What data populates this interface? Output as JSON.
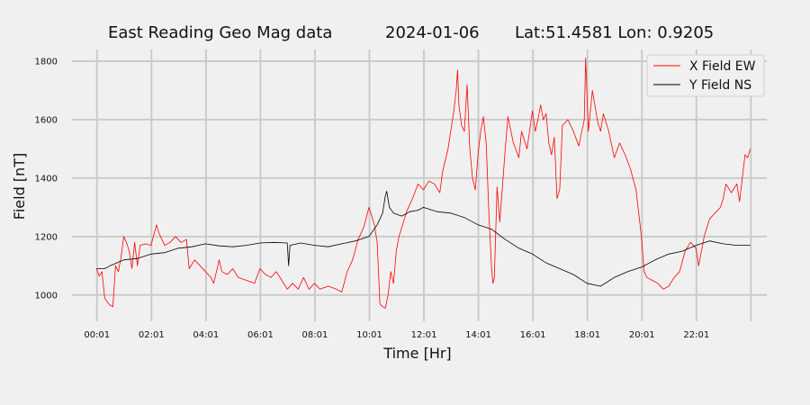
{
  "chart_data": {
    "type": "line",
    "title": {
      "station": "East Reading Geo Mag data",
      "date": "2024-01-06",
      "location": "Lat:51.4581  Lon: 0.9205"
    },
    "xlabel": "Time  [Hr]",
    "ylabel": "Field  [nT]",
    "x_unit": "hours since 00:00",
    "xlim": [
      -0.9,
      24.6
    ],
    "ylim": [
      910,
      1840
    ],
    "x_ticks": [
      {
        "x": 0.0167,
        "label": "00:01"
      },
      {
        "x": 2.0167,
        "label": "02:01"
      },
      {
        "x": 4.0167,
        "label": "04:01"
      },
      {
        "x": 6.0167,
        "label": "06:01"
      },
      {
        "x": 8.0167,
        "label": "08:01"
      },
      {
        "x": 10.0167,
        "label": "10:01"
      },
      {
        "x": 12.0167,
        "label": "12:01"
      },
      {
        "x": 14.0167,
        "label": "14:01"
      },
      {
        "x": 16.0167,
        "label": "16:01"
      },
      {
        "x": 18.0167,
        "label": "18:01"
      },
      {
        "x": 20.0167,
        "label": "20:01"
      },
      {
        "x": 22.0167,
        "label": "22:01"
      }
    ],
    "x_grid": [
      0.0167,
      2.0167,
      4.0167,
      6.0167,
      8.0167,
      10.0167,
      12.0167,
      14.0167,
      16.0167,
      18.0167,
      20.0167,
      22.0167,
      24.0167
    ],
    "y_ticks": [
      1000,
      1200,
      1400,
      1600,
      1800
    ],
    "grid": true,
    "legend": {
      "position": "top-right"
    },
    "series": [
      {
        "name": "X Field EW",
        "color": "#ff0000",
        "points": [
          [
            0.0,
            1090
          ],
          [
            0.1,
            1065
          ],
          [
            0.2,
            1080
          ],
          [
            0.3,
            990
          ],
          [
            0.4,
            975
          ],
          [
            0.5,
            965
          ],
          [
            0.6,
            960
          ],
          [
            0.7,
            1100
          ],
          [
            0.8,
            1080
          ],
          [
            0.9,
            1130
          ],
          [
            1.0,
            1200
          ],
          [
            1.1,
            1180
          ],
          [
            1.2,
            1150
          ],
          [
            1.3,
            1090
          ],
          [
            1.4,
            1180
          ],
          [
            1.5,
            1100
          ],
          [
            1.6,
            1170
          ],
          [
            1.8,
            1175
          ],
          [
            2.0,
            1170
          ],
          [
            2.2,
            1240
          ],
          [
            2.3,
            1210
          ],
          [
            2.5,
            1170
          ],
          [
            2.7,
            1180
          ],
          [
            2.9,
            1200
          ],
          [
            3.1,
            1180
          ],
          [
            3.3,
            1190
          ],
          [
            3.4,
            1090
          ],
          [
            3.6,
            1120
          ],
          [
            3.8,
            1100
          ],
          [
            4.0,
            1080
          ],
          [
            4.2,
            1060
          ],
          [
            4.3,
            1040
          ],
          [
            4.4,
            1080
          ],
          [
            4.5,
            1120
          ],
          [
            4.6,
            1080
          ],
          [
            4.8,
            1070
          ],
          [
            5.0,
            1090
          ],
          [
            5.2,
            1060
          ],
          [
            5.5,
            1050
          ],
          [
            5.8,
            1040
          ],
          [
            6.0,
            1090
          ],
          [
            6.2,
            1070
          ],
          [
            6.4,
            1060
          ],
          [
            6.6,
            1080
          ],
          [
            6.8,
            1050
          ],
          [
            7.0,
            1020
          ],
          [
            7.2,
            1040
          ],
          [
            7.4,
            1020
          ],
          [
            7.6,
            1060
          ],
          [
            7.8,
            1020
          ],
          [
            8.0,
            1040
          ],
          [
            8.2,
            1020
          ],
          [
            8.5,
            1030
          ],
          [
            8.8,
            1020
          ],
          [
            9.0,
            1010
          ],
          [
            9.2,
            1080
          ],
          [
            9.4,
            1120
          ],
          [
            9.6,
            1190
          ],
          [
            9.8,
            1230
          ],
          [
            10.0,
            1300
          ],
          [
            10.2,
            1240
          ],
          [
            10.3,
            1180
          ],
          [
            10.4,
            970
          ],
          [
            10.5,
            960
          ],
          [
            10.6,
            955
          ],
          [
            10.7,
            1000
          ],
          [
            10.8,
            1080
          ],
          [
            10.9,
            1040
          ],
          [
            11.0,
            1150
          ],
          [
            11.1,
            1200
          ],
          [
            11.2,
            1230
          ],
          [
            11.4,
            1290
          ],
          [
            11.6,
            1330
          ],
          [
            11.8,
            1380
          ],
          [
            12.0,
            1360
          ],
          [
            12.2,
            1390
          ],
          [
            12.4,
            1380
          ],
          [
            12.6,
            1350
          ],
          [
            12.7,
            1420
          ],
          [
            12.9,
            1500
          ],
          [
            13.0,
            1560
          ],
          [
            13.1,
            1620
          ],
          [
            13.2,
            1700
          ],
          [
            13.25,
            1770
          ],
          [
            13.3,
            1650
          ],
          [
            13.4,
            1580
          ],
          [
            13.5,
            1560
          ],
          [
            13.6,
            1720
          ],
          [
            13.7,
            1500
          ],
          [
            13.8,
            1400
          ],
          [
            13.9,
            1360
          ],
          [
            14.0,
            1480
          ],
          [
            14.1,
            1560
          ],
          [
            14.2,
            1610
          ],
          [
            14.3,
            1520
          ],
          [
            14.4,
            1280
          ],
          [
            14.5,
            1090
          ],
          [
            14.55,
            1040
          ],
          [
            14.6,
            1060
          ],
          [
            14.7,
            1370
          ],
          [
            14.8,
            1250
          ],
          [
            15.0,
            1500
          ],
          [
            15.1,
            1610
          ],
          [
            15.3,
            1520
          ],
          [
            15.5,
            1470
          ],
          [
            15.6,
            1560
          ],
          [
            15.8,
            1500
          ],
          [
            16.0,
            1630
          ],
          [
            16.1,
            1560
          ],
          [
            16.2,
            1600
          ],
          [
            16.3,
            1650
          ],
          [
            16.4,
            1600
          ],
          [
            16.5,
            1620
          ],
          [
            16.6,
            1520
          ],
          [
            16.7,
            1480
          ],
          [
            16.8,
            1540
          ],
          [
            16.9,
            1330
          ],
          [
            17.0,
            1360
          ],
          [
            17.1,
            1580
          ],
          [
            17.3,
            1600
          ],
          [
            17.5,
            1560
          ],
          [
            17.7,
            1510
          ],
          [
            17.9,
            1600
          ],
          [
            17.95,
            1810
          ],
          [
            18.05,
            1560
          ],
          [
            18.2,
            1700
          ],
          [
            18.4,
            1590
          ],
          [
            18.5,
            1560
          ],
          [
            18.6,
            1620
          ],
          [
            18.8,
            1560
          ],
          [
            19.0,
            1470
          ],
          [
            19.2,
            1520
          ],
          [
            19.4,
            1480
          ],
          [
            19.6,
            1430
          ],
          [
            19.8,
            1360
          ],
          [
            19.9,
            1280
          ],
          [
            20.0,
            1200
          ],
          [
            20.1,
            1080
          ],
          [
            20.2,
            1060
          ],
          [
            20.4,
            1050
          ],
          [
            20.6,
            1040
          ],
          [
            20.8,
            1020
          ],
          [
            21.0,
            1030
          ],
          [
            21.2,
            1060
          ],
          [
            21.4,
            1080
          ],
          [
            21.6,
            1150
          ],
          [
            21.8,
            1180
          ],
          [
            22.0,
            1160
          ],
          [
            22.1,
            1100
          ],
          [
            22.3,
            1200
          ],
          [
            22.5,
            1260
          ],
          [
            22.7,
            1280
          ],
          [
            22.9,
            1300
          ],
          [
            23.0,
            1330
          ],
          [
            23.1,
            1380
          ],
          [
            23.3,
            1350
          ],
          [
            23.5,
            1380
          ],
          [
            23.6,
            1320
          ],
          [
            23.7,
            1400
          ],
          [
            23.8,
            1480
          ],
          [
            23.9,
            1470
          ],
          [
            24.0,
            1500
          ]
        ]
      },
      {
        "name": "Y Field NS",
        "color": "#000000",
        "points": [
          [
            0.0,
            1090
          ],
          [
            0.3,
            1090
          ],
          [
            0.5,
            1100
          ],
          [
            1.0,
            1120
          ],
          [
            1.5,
            1125
          ],
          [
            2.0,
            1140
          ],
          [
            2.5,
            1145
          ],
          [
            3.0,
            1160
          ],
          [
            3.5,
            1165
          ],
          [
            4.0,
            1175
          ],
          [
            4.5,
            1168
          ],
          [
            5.0,
            1165
          ],
          [
            5.5,
            1170
          ],
          [
            6.0,
            1178
          ],
          [
            6.5,
            1180
          ],
          [
            7.0,
            1178
          ],
          [
            7.05,
            1100
          ],
          [
            7.1,
            1170
          ],
          [
            7.5,
            1178
          ],
          [
            8.0,
            1170
          ],
          [
            8.5,
            1165
          ],
          [
            9.0,
            1175
          ],
          [
            9.5,
            1185
          ],
          [
            10.0,
            1200
          ],
          [
            10.3,
            1240
          ],
          [
            10.5,
            1280
          ],
          [
            10.6,
            1340
          ],
          [
            10.65,
            1355
          ],
          [
            10.75,
            1300
          ],
          [
            10.9,
            1280
          ],
          [
            11.2,
            1270
          ],
          [
            11.5,
            1285
          ],
          [
            11.8,
            1290
          ],
          [
            12.0,
            1300
          ],
          [
            12.5,
            1285
          ],
          [
            13.0,
            1280
          ],
          [
            13.5,
            1265
          ],
          [
            14.0,
            1240
          ],
          [
            14.5,
            1225
          ],
          [
            15.0,
            1190
          ],
          [
            15.5,
            1160
          ],
          [
            16.0,
            1140
          ],
          [
            16.5,
            1110
          ],
          [
            17.0,
            1090
          ],
          [
            17.5,
            1070
          ],
          [
            18.0,
            1040
          ],
          [
            18.5,
            1030
          ],
          [
            19.0,
            1060
          ],
          [
            19.5,
            1080
          ],
          [
            20.0,
            1095
          ],
          [
            20.5,
            1120
          ],
          [
            21.0,
            1140
          ],
          [
            21.5,
            1150
          ],
          [
            22.0,
            1170
          ],
          [
            22.5,
            1185
          ],
          [
            23.0,
            1175
          ],
          [
            23.5,
            1170
          ],
          [
            24.0,
            1170
          ]
        ]
      }
    ]
  }
}
